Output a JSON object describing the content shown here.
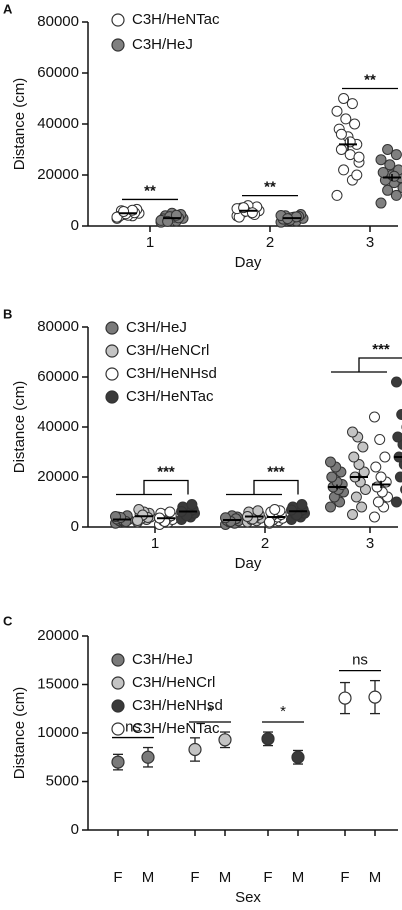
{
  "chart_data": [
    {
      "type": "dotplot",
      "panel_label": "A",
      "x_label": "Day",
      "y_label": "Distance (cm)",
      "categories": [
        "1",
        "2",
        "3"
      ],
      "ylim": [
        0,
        80000
      ],
      "yticks": [
        0,
        20000,
        40000,
        60000,
        80000
      ],
      "significance": [
        "**",
        "**",
        "**"
      ],
      "series": [
        {
          "name": "C3H/HeNTac",
          "color": "#ffffff",
          "values": [
            [
              3000,
              4000,
              4500,
              5000,
              5500,
              6000,
              6500,
              4200,
              3800,
              5200,
              4800,
              3500,
              6200,
              5700
            ],
            [
              4000,
              5000,
              5500,
              6000,
              6500,
              7000,
              7500,
              8000,
              3500,
              4500,
              5800,
              6800,
              5200,
              7200
            ],
            [
              12000,
              18000,
              22000,
              25000,
              28000,
              30000,
              32000,
              35000,
              38000,
              40000,
              42000,
              45000,
              48000,
              50000,
              27000,
              33000,
              36000,
              20000
            ]
          ],
          "means": [
            5000,
            6000,
            32000
          ],
          "errors": [
            300,
            350,
            2400
          ]
        },
        {
          "name": "C3H/HeJ",
          "color": "#808080",
          "values": [
            [
              1500,
              2000,
              2500,
              3000,
              3500,
              4000,
              4500,
              5000,
              2800,
              3200,
              3700,
              2200,
              4200,
              1800
            ],
            [
              1500,
              2000,
              2500,
              3000,
              3500,
              4000,
              4500,
              3300,
              2700,
              3800,
              2300,
              4100,
              3600,
              2900
            ],
            [
              9000,
              12000,
              14000,
              16000,
              17000,
              18000,
              19000,
              20000,
              21000,
              22000,
              24000,
              26000,
              28000,
              30000,
              15000,
              19500
            ]
          ],
          "means": [
            3100,
            3100,
            19000
          ],
          "errors": [
            250,
            250,
            1400
          ]
        }
      ]
    },
    {
      "type": "dotplot",
      "panel_label": "B",
      "x_label": "Day",
      "y_label": "Distance (cm)",
      "categories": [
        "1",
        "2",
        "3"
      ],
      "ylim": [
        0,
        80000
      ],
      "yticks": [
        0,
        20000,
        40000,
        60000,
        80000
      ],
      "significance": [
        "***",
        "***",
        "***"
      ],
      "series": [
        {
          "name": "C3H/HeJ",
          "color": "#7a7a7a",
          "values": [
            [
              1500,
              2000,
              2500,
              3000,
              3500,
              4000,
              4500,
              2800,
              3200,
              2200,
              3800,
              4200
            ],
            [
              1000,
              1500,
              2000,
              2500,
              3000,
              3500,
              4000,
              4500,
              2700,
              3300,
              2200,
              3700
            ],
            [
              8000,
              10000,
              12000,
              14000,
              15000,
              16000,
              17000,
              18000,
              20000,
              22000,
              24000,
              26000
            ]
          ],
          "means": [
            3000,
            2800,
            16000
          ],
          "errors": [
            200,
            200,
            1000
          ]
        },
        {
          "name": "C3H/HeNCrl",
          "color": "#c4c4c4",
          "values": [
            [
              2000,
              3000,
              3500,
              4000,
              4500,
              5000,
              5500,
              6000,
              7000,
              3800,
              4800,
              2600
            ],
            [
              2000,
              2500,
              3000,
              3500,
              4000,
              4500,
              5000,
              5500,
              6000,
              6500,
              3200,
              4200
            ],
            [
              5000,
              8000,
              12000,
              15000,
              18000,
              20000,
              22000,
              25000,
              28000,
              32000,
              36000,
              38000
            ]
          ],
          "means": [
            4300,
            4200,
            20000
          ],
          "errors": [
            300,
            300,
            1500
          ]
        },
        {
          "name": "C3H/HeNHsd",
          "color": "#ffffff",
          "values": [
            [
              1000,
              2000,
              2500,
              3000,
              3500,
              4000,
              4500,
              5000,
              5500,
              6000,
              2200,
              3600
            ],
            [
              1500,
              2500,
              3000,
              3500,
              4000,
              4500,
              5000,
              5500,
              6000,
              6500,
              7000,
              2000
            ],
            [
              4000,
              8000,
              10000,
              12000,
              14000,
              16000,
              18000,
              20000,
              24000,
              28000,
              35000,
              44000
            ]
          ],
          "means": [
            3500,
            4000,
            17000
          ],
          "errors": [
            300,
            300,
            1500
          ]
        },
        {
          "name": "C3H/HeNTac",
          "color": "#3a3a3a",
          "values": [
            [
              3000,
              4000,
              5000,
              5500,
              6000,
              6500,
              7000,
              7500,
              8000,
              9000,
              4500,
              6200
            ],
            [
              3000,
              4000,
              5000,
              5500,
              6000,
              6500,
              7000,
              7500,
              8000,
              9000,
              4800,
              6800
            ],
            [
              10000,
              15000,
              20000,
              22000,
              25000,
              28000,
              30000,
              33000,
              36000,
              40000,
              45000,
              58000
            ]
          ],
          "means": [
            6200,
            6300,
            28000
          ],
          "errors": [
            300,
            300,
            1500
          ]
        }
      ]
    },
    {
      "type": "errorbar",
      "panel_label": "C",
      "x_label": "Sex",
      "y_label": "Distance (cm)",
      "categories": [
        "F",
        "M"
      ],
      "ylim": [
        0,
        20000
      ],
      "yticks": [
        0,
        5000,
        10000,
        15000,
        20000
      ],
      "significance": [
        "ns",
        "*",
        "*",
        "ns"
      ],
      "series": [
        {
          "name": "C3H/HeJ",
          "color": "#7a7a7a",
          "values": [
            7000,
            7500
          ],
          "errors": [
            800,
            1000
          ]
        },
        {
          "name": "C3H/HeNCrl",
          "color": "#c4c4c4",
          "values": [
            8300,
            9300
          ],
          "errors": [
            1200,
            800
          ]
        },
        {
          "name": "C3H/HeNHsd",
          "color": "#3a3a3a",
          "values": [
            9400,
            7500
          ],
          "errors": [
            700,
            700
          ]
        },
        {
          "name": "C3H/HeNTac",
          "color": "#ffffff",
          "values": [
            13600,
            13700
          ],
          "errors": [
            1600,
            1700
          ]
        }
      ]
    }
  ]
}
